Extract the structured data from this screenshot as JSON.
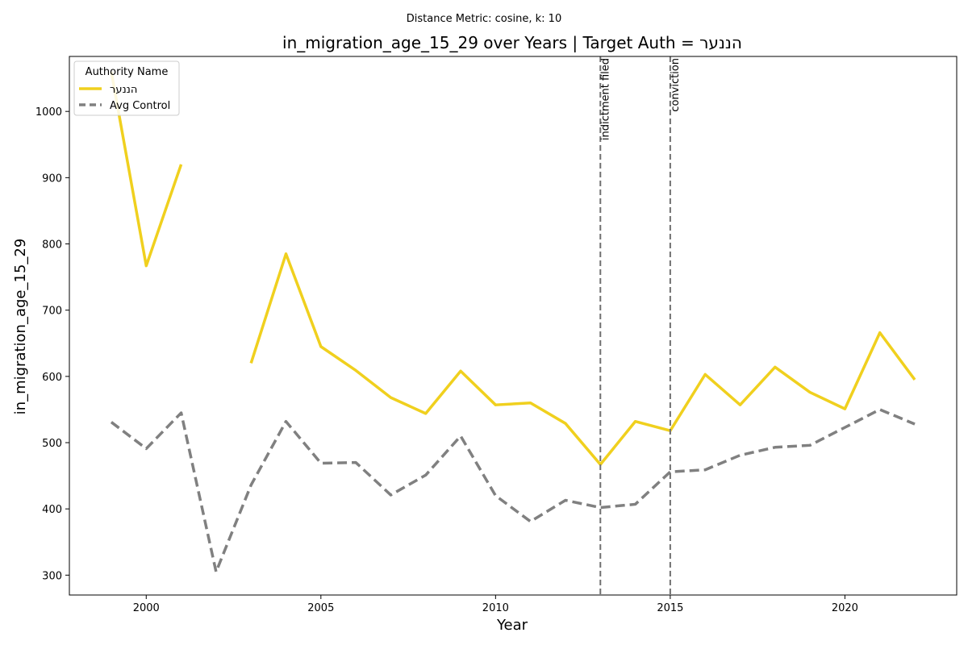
{
  "chart_data": {
    "type": "line",
    "subtitle": "Distance Metric: cosine, k: 10",
    "title": "in_migration_age_15_29 over Years | Target Auth = הננער",
    "xlabel": "Year",
    "ylabel": "in_migration_age_15_29",
    "xlim": [
      1997.8,
      2023.2
    ],
    "ylim": [
      270,
      1083
    ],
    "xticks": [
      2000,
      2005,
      2010,
      2015,
      2020
    ],
    "yticks": [
      300,
      400,
      500,
      600,
      700,
      800,
      900,
      1000
    ],
    "legend": {
      "title": "Authority Name",
      "placement": "top-left"
    },
    "series": [
      {
        "name": "הננער",
        "color": "#f0d01e",
        "style": "solid",
        "x": [
          1999,
          2000,
          2001,
          2002,
          2003,
          2004,
          2005,
          2006,
          2007,
          2008,
          2009,
          2010,
          2011,
          2012,
          2013,
          2014,
          2015,
          2016,
          2017,
          2018,
          2019,
          2020,
          2021,
          2022
        ],
        "values": [
          1060,
          767,
          920,
          null,
          620,
          785,
          645,
          609,
          568,
          544,
          608,
          557,
          560,
          529,
          467,
          532,
          518,
          603,
          557,
          614,
          576,
          551,
          666,
          595
        ]
      },
      {
        "name": "Avg Control",
        "color": "#808080",
        "style": "dashed",
        "x": [
          1999,
          2000,
          2001,
          2002,
          2003,
          2004,
          2005,
          2006,
          2007,
          2008,
          2009,
          2010,
          2011,
          2012,
          2013,
          2014,
          2015,
          2016,
          2017,
          2018,
          2019,
          2020,
          2021,
          2022
        ],
        "values": [
          531,
          491,
          545,
          305,
          436,
          532,
          469,
          470,
          421,
          451,
          510,
          420,
          381,
          413,
          402,
          407,
          456,
          459,
          481,
          493,
          496,
          523,
          550,
          528
        ]
      }
    ],
    "vlines": [
      {
        "x": 2013,
        "label": "indictment filed",
        "color": "#707070"
      },
      {
        "x": 2015,
        "label": "conviction",
        "color": "#707070"
      }
    ]
  }
}
